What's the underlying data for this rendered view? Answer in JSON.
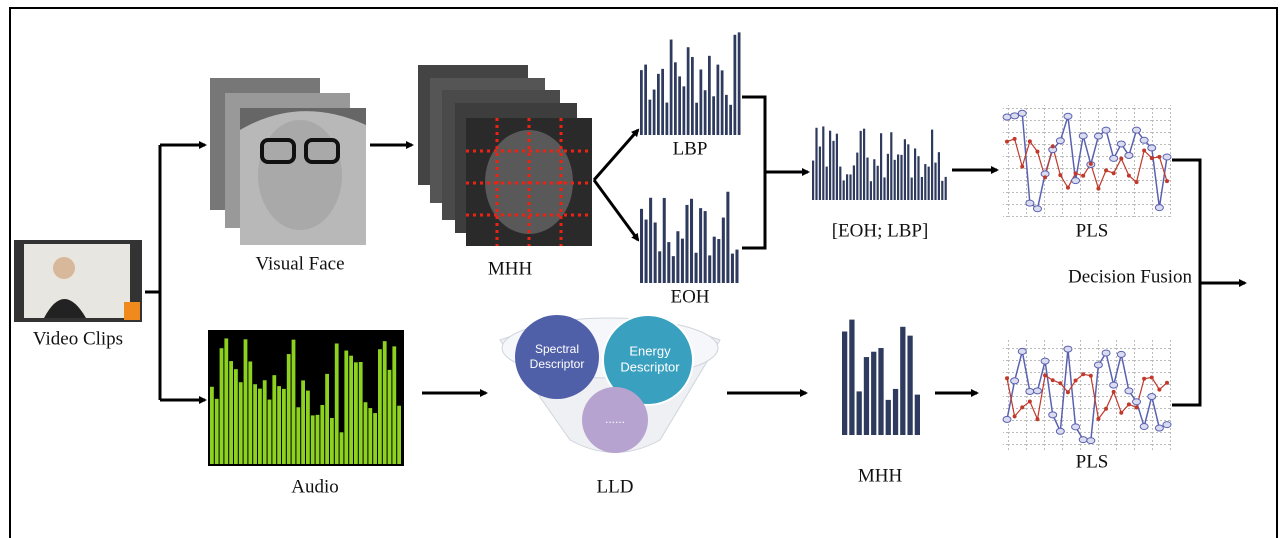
{
  "nodes": {
    "video": "Video Clips",
    "face": "Visual Face",
    "mhh_visual": "MHH",
    "lbp": "LBP",
    "eoh": "EOH",
    "concat": "[EOH; LBP]",
    "pls_top": "PLS",
    "fusion": "Decision Fusion",
    "audio": "Audio",
    "lld": "LLD",
    "mhh_audio": "MHH",
    "pls_bottom": "PLS"
  },
  "descriptors": {
    "spectral": [
      "Spectral",
      "Descriptor"
    ],
    "energy": [
      "Energy",
      "Descriptor"
    ],
    "more": "......"
  }
}
